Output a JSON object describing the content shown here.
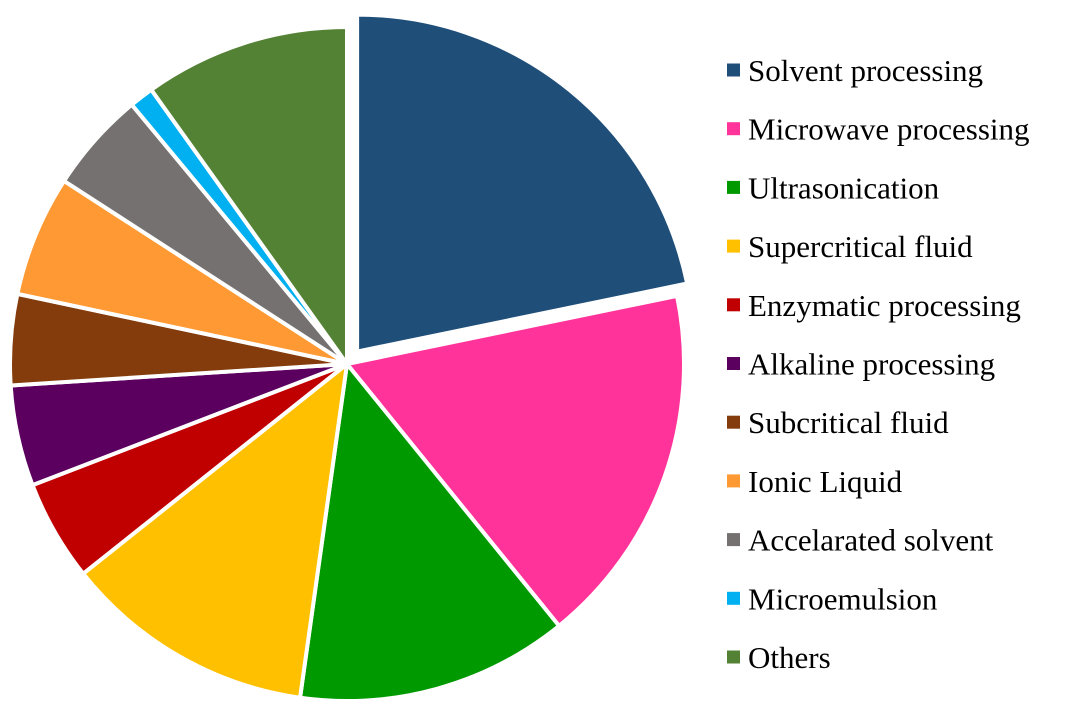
{
  "chart_data": {
    "type": "pie",
    "title": "",
    "legend_position": "right",
    "exploded": [
      "Solvent processing"
    ],
    "slices": [
      {
        "label": "Solvent processing",
        "value": 22.5,
        "color": "#1f4e79"
      },
      {
        "label": "Microwave processing",
        "value": 18.0,
        "color": "#ff3399"
      },
      {
        "label": "Ultrasonication",
        "value": 13.5,
        "color": "#009900"
      },
      {
        "label": "Supercritical fluid",
        "value": 12.5,
        "color": "#ffc000"
      },
      {
        "label": "Enzymatic processing",
        "value": 5.0,
        "color": "#c00000"
      },
      {
        "label": "Alkaline processing",
        "value": 5.0,
        "color": "#5c0060"
      },
      {
        "label": "Subcritical fluid",
        "value": 4.5,
        "color": "#843c0c"
      },
      {
        "label": "Ionic Liquid",
        "value": 6.0,
        "color": "#ff9933"
      },
      {
        "label": "Accelarated solvent",
        "value": 5.0,
        "color": "#767171"
      },
      {
        "label": "Microemulsion",
        "value": 1.2,
        "color": "#00b0f0"
      },
      {
        "label": "Others",
        "value": 10.2,
        "color": "#548235"
      }
    ]
  }
}
